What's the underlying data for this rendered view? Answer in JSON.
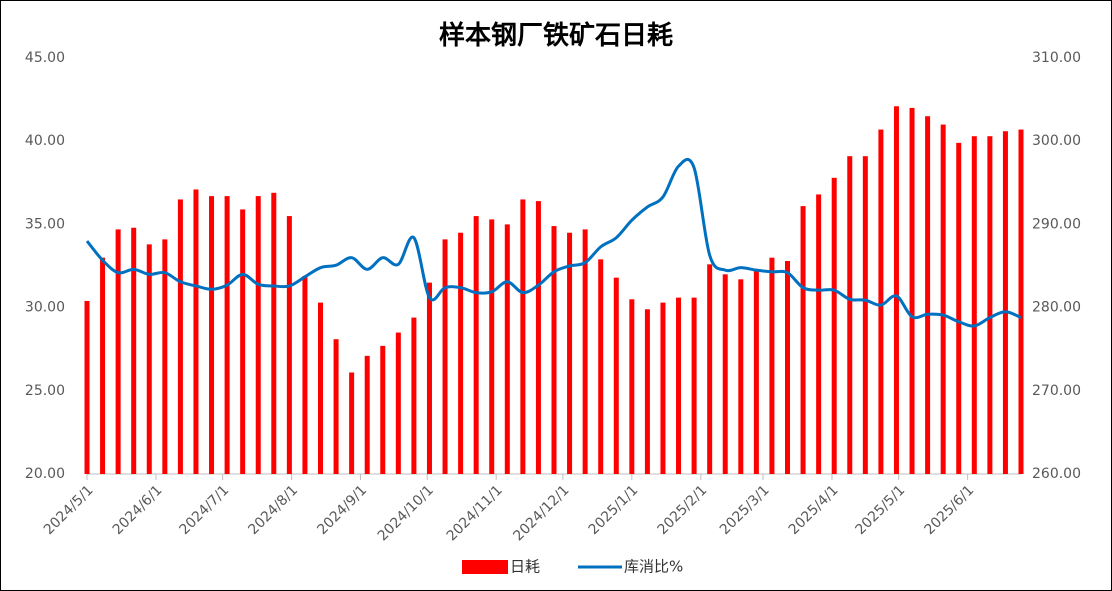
{
  "chart_data": {
    "type": "bar_line",
    "title": "样本钢厂铁矿石日耗",
    "x": [
      "2024/5/1",
      "2024/5/8",
      "2024/5/15",
      "2024/5/22",
      "2024/5/29",
      "2024/6/5",
      "2024/6/12",
      "2024/6/19",
      "2024/6/26",
      "2024/7/3",
      "2024/7/10",
      "2024/7/17",
      "2024/7/24",
      "2024/7/31",
      "2024/8/7",
      "2024/8/14",
      "2024/8/21",
      "2024/8/28",
      "2024/9/4",
      "2024/9/11",
      "2024/9/18",
      "2024/9/25",
      "2024/10/2",
      "2024/10/9",
      "2024/10/16",
      "2024/10/23",
      "2024/10/30",
      "2024/11/6",
      "2024/11/13",
      "2024/11/20",
      "2024/11/27",
      "2024/12/4",
      "2024/12/11",
      "2024/12/18",
      "2024/12/25",
      "2025/1/1",
      "2025/1/8",
      "2025/1/15",
      "2025/1/22",
      "2025/1/29",
      "2025/2/5",
      "2025/2/12",
      "2025/2/19",
      "2025/2/26",
      "2025/3/5",
      "2025/3/12",
      "2025/3/19",
      "2025/3/26",
      "2025/4/2",
      "2025/4/9",
      "2025/4/16",
      "2025/4/23",
      "2025/4/30",
      "2025/5/7",
      "2025/5/14",
      "2025/5/21",
      "2025/5/28",
      "2025/6/4",
      "2025/6/11",
      "2025/6/18",
      "2025/6/25"
    ],
    "xlim": [
      "2024/5/1",
      "2025/6/25"
    ],
    "xticks": [
      "2024/5/1",
      "2024/6/1",
      "2024/7/1",
      "2024/8/1",
      "2024/9/1",
      "2024/10/1",
      "2024/11/1",
      "2024/12/1",
      "2025/1/1",
      "2025/2/1",
      "2025/3/1",
      "2025/4/1",
      "2025/5/1",
      "2025/6/1"
    ],
    "series": [
      {
        "name": "日耗",
        "kind": "bar",
        "axis": "y",
        "color": "#ff0000",
        "values": [
          30.4,
          33.0,
          34.7,
          34.8,
          33.8,
          34.1,
          36.5,
          37.1,
          36.7,
          36.7,
          35.9,
          36.7,
          36.9,
          35.5,
          31.9,
          30.3,
          28.1,
          26.1,
          27.1,
          27.7,
          28.5,
          29.4,
          31.5,
          34.1,
          34.5,
          35.5,
          35.3,
          35.0,
          36.5,
          36.4,
          34.9,
          34.5,
          34.7,
          32.9,
          31.8,
          30.5,
          29.9,
          30.3,
          30.6,
          30.6,
          32.6,
          32.0,
          31.7,
          32.2,
          33.0,
          32.8,
          36.1,
          36.8,
          37.8,
          39.1,
          39.1,
          40.7,
          42.1,
          42.0,
          41.5,
          41.0,
          39.9,
          40.3,
          40.3,
          40.6,
          40.7
        ]
      },
      {
        "name": "库消比%",
        "kind": "line",
        "axis": "y2",
        "color": "#0070c0",
        "values": [
          288.0,
          285.7,
          284.2,
          284.6,
          284.0,
          284.2,
          283.1,
          282.6,
          282.2,
          282.7,
          284.0,
          282.8,
          282.6,
          282.6,
          283.7,
          284.8,
          285.1,
          286.0,
          284.6,
          286.0,
          285.2,
          288.4,
          281.2,
          282.4,
          282.4,
          281.8,
          281.9,
          283.1,
          281.8,
          282.7,
          284.3,
          285.0,
          285.4,
          287.3,
          288.4,
          290.5,
          292.1,
          293.3,
          297.0,
          296.8,
          286.3,
          284.5,
          284.8,
          284.5,
          284.3,
          284.2,
          282.4,
          282.1,
          282.1,
          281.0,
          280.9,
          280.3,
          281.4,
          278.9,
          279.2,
          279.1,
          278.3,
          277.8,
          278.8,
          279.5,
          278.8
        ]
      }
    ],
    "ylim": [
      20,
      45
    ],
    "yticks": [
      {
        "value": 20,
        "label": "20.00"
      },
      {
        "value": 25,
        "label": "25.00"
      },
      {
        "value": 30,
        "label": "30.00"
      },
      {
        "value": 35,
        "label": "35.00"
      },
      {
        "value": 40,
        "label": "40.00"
      },
      {
        "value": 45,
        "label": "45.00"
      }
    ],
    "y2lim": [
      260,
      310
    ],
    "y2ticks": [
      {
        "value": 260,
        "label": "260.00"
      },
      {
        "value": 270,
        "label": "270.00"
      },
      {
        "value": 280,
        "label": "280.00"
      },
      {
        "value": 290,
        "label": "290.00"
      },
      {
        "value": 300,
        "label": "300.00"
      },
      {
        "value": 310,
        "label": "310.00"
      }
    ],
    "grid": false,
    "legend": "bottom"
  }
}
